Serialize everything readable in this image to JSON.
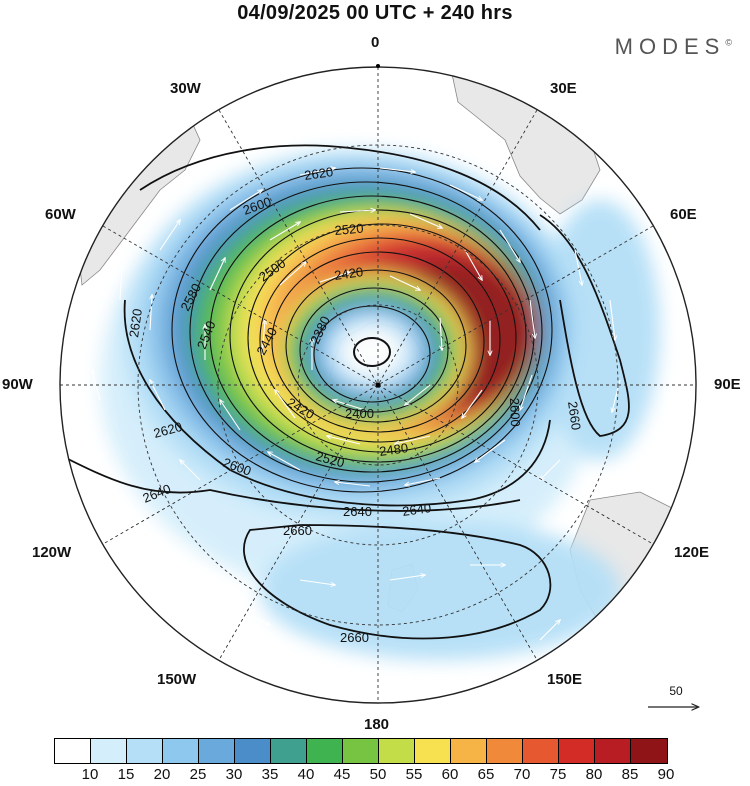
{
  "title": "04/09/2025  00 UTC  + 240 hrs",
  "logo": "MODES",
  "logo_mark": "©",
  "longitude_labels": {
    "l0": "0",
    "l30e": "30E",
    "l60e": "60E",
    "l90e": "90E",
    "l120e": "120E",
    "l150e": "150E",
    "l180": "180",
    "l150w": "150W",
    "l120w": "120W",
    "l90w": "90W",
    "l60w": "60W",
    "l30w": "30W"
  },
  "contour_labels": [
    "2620",
    "2600",
    "2520",
    "2500",
    "2420",
    "2380",
    "2580",
    "2540",
    "2440",
    "2620",
    "2420",
    "2400",
    "2480",
    "2520",
    "2600",
    "2620",
    "2640",
    "2640",
    "2660",
    "2640",
    "2600",
    "2660",
    "2660"
  ],
  "vector_scale": {
    "value": "50",
    "icon": "arrow-right-icon"
  },
  "colorbar": {
    "ticks": [
      "10",
      "15",
      "20",
      "25",
      "30",
      "35",
      "40",
      "45",
      "50",
      "55",
      "60",
      "65",
      "70",
      "75",
      "80",
      "85",
      "90"
    ],
    "colors": [
      "#ffffff",
      "#d4eefb",
      "#b4dff7",
      "#8fc8ee",
      "#6aa9dc",
      "#4a8dc8",
      "#3fa08f",
      "#3fb34f",
      "#77c442",
      "#c2dd48",
      "#f7e150",
      "#f6b447",
      "#f08a3a",
      "#e6582f",
      "#d32b26",
      "#b81d24",
      "#8e1418"
    ]
  },
  "chart_data": {
    "type": "heatmap",
    "projection": "south polar stereographic",
    "field": "jet speed shading with geopotential height contours and wind vectors",
    "contour_levels": [
      2380,
      2400,
      2420,
      2440,
      2480,
      2500,
      2520,
      2540,
      2580,
      2600,
      2620,
      2640,
      2660
    ],
    "shading_range": [
      10,
      90
    ]
  }
}
